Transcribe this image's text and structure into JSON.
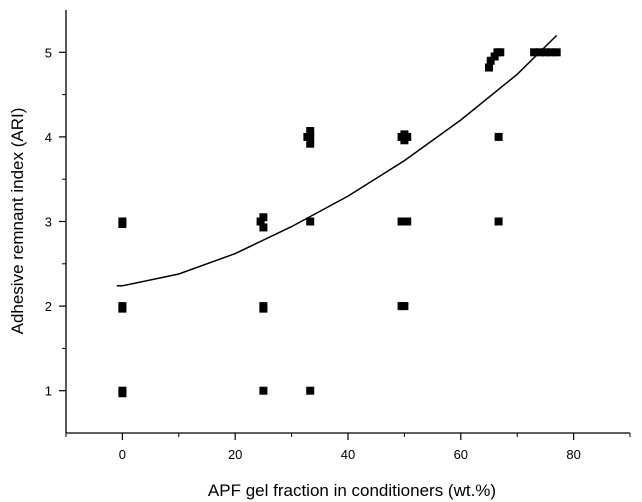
{
  "chart_data": {
    "type": "scatter",
    "title": "",
    "xlabel": "APF gel fraction in conditioners (wt.%)",
    "ylabel": "Adhesive remnant index (ARI)",
    "xlim": [
      -10,
      90
    ],
    "ylim": [
      0.5,
      5.5
    ],
    "x_ticks": [
      0,
      20,
      40,
      60,
      80
    ],
    "x_tick_labels": [
      "0",
      "20",
      "40",
      "60",
      "80"
    ],
    "y_ticks": [
      1,
      2,
      3,
      4,
      5
    ],
    "y_tick_labels": [
      "1",
      "2",
      "3",
      "4",
      "5"
    ],
    "grid": false,
    "legend": "none",
    "marker": "square",
    "marker_color": "#000000",
    "points": [
      {
        "x": 0,
        "y": 1
      },
      {
        "x": 0,
        "y": 0.97
      },
      {
        "x": 0,
        "y": 2
      },
      {
        "x": 0,
        "y": 1.97
      },
      {
        "x": 0,
        "y": 3
      },
      {
        "x": 0,
        "y": 2.97
      },
      {
        "x": 25,
        "y": 1
      },
      {
        "x": 25,
        "y": 2
      },
      {
        "x": 25,
        "y": 1.97
      },
      {
        "x": 24.5,
        "y": 3
      },
      {
        "x": 25,
        "y": 3.05
      },
      {
        "x": 25,
        "y": 2.93
      },
      {
        "x": 33.3,
        "y": 1
      },
      {
        "x": 33.3,
        "y": 3
      },
      {
        "x": 33.3,
        "y": 4
      },
      {
        "x": 33.3,
        "y": 4.07
      },
      {
        "x": 33.3,
        "y": 3.92
      },
      {
        "x": 32.8,
        "y": 4
      },
      {
        "x": 49.5,
        "y": 2
      },
      {
        "x": 50,
        "y": 2
      },
      {
        "x": 49.5,
        "y": 3
      },
      {
        "x": 50.5,
        "y": 3
      },
      {
        "x": 49.5,
        "y": 4
      },
      {
        "x": 50,
        "y": 4.03
      },
      {
        "x": 50.5,
        "y": 4
      },
      {
        "x": 50,
        "y": 3.96
      },
      {
        "x": 66.7,
        "y": 3
      },
      {
        "x": 66.7,
        "y": 4
      },
      {
        "x": 65,
        "y": 4.82
      },
      {
        "x": 65.3,
        "y": 4.9
      },
      {
        "x": 66,
        "y": 4.95
      },
      {
        "x": 66.5,
        "y": 5
      },
      {
        "x": 67,
        "y": 5
      },
      {
        "x": 73,
        "y": 5
      },
      {
        "x": 74,
        "y": 5
      },
      {
        "x": 75,
        "y": 5
      },
      {
        "x": 76,
        "y": 5
      },
      {
        "x": 77,
        "y": 5
      }
    ],
    "fit_curve": {
      "type": "polynomial",
      "x": [
        -1,
        0,
        10,
        20,
        30,
        40,
        50,
        60,
        70,
        77
      ],
      "y": [
        2.24,
        2.24,
        2.38,
        2.62,
        2.94,
        3.3,
        3.72,
        4.2,
        4.74,
        5.2
      ]
    }
  }
}
